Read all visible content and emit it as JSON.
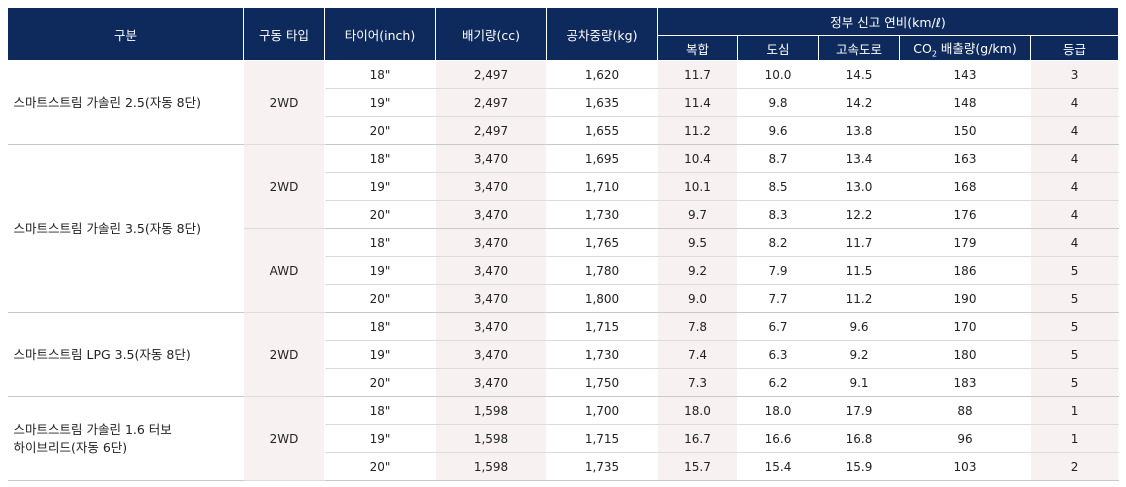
{
  "header": {
    "division": "구분",
    "drive_type": "구동 타입",
    "tire": "타이어(inch)",
    "displacement": "배기량(cc)",
    "curb_weight": "공차중량(kg)",
    "fuel_economy_group": "정부 신고 연비(km/ℓ)",
    "combined": "복합",
    "city": "도심",
    "highway": "고속도로",
    "co2_prefix": "CO",
    "co2_sub": "2",
    "co2_suffix": " 배출량(g/km)",
    "grade": "등급"
  },
  "groups": [
    {
      "model": "스마트스트림 가솔린 2.5(자동 8단)",
      "drives": [
        {
          "drive": "2WD",
          "rows": [
            {
              "tire": "18\"",
              "disp": "2,497",
              "weight": "1,620",
              "combined": "11.7",
              "city": "10.0",
              "highway": "14.5",
              "co2": "143",
              "grade": "3"
            },
            {
              "tire": "19\"",
              "disp": "2,497",
              "weight": "1,635",
              "combined": "11.4",
              "city": "9.8",
              "highway": "14.2",
              "co2": "148",
              "grade": "4"
            },
            {
              "tire": "20\"",
              "disp": "2,497",
              "weight": "1,655",
              "combined": "11.2",
              "city": "9.6",
              "highway": "13.8",
              "co2": "150",
              "grade": "4"
            }
          ]
        }
      ]
    },
    {
      "model": "스마트스트림 가솔린 3.5(자동 8단)",
      "drives": [
        {
          "drive": "2WD",
          "rows": [
            {
              "tire": "18\"",
              "disp": "3,470",
              "weight": "1,695",
              "combined": "10.4",
              "city": "8.7",
              "highway": "13.4",
              "co2": "163",
              "grade": "4"
            },
            {
              "tire": "19\"",
              "disp": "3,470",
              "weight": "1,710",
              "combined": "10.1",
              "city": "8.5",
              "highway": "13.0",
              "co2": "168",
              "grade": "4"
            },
            {
              "tire": "20\"",
              "disp": "3,470",
              "weight": "1,730",
              "combined": "9.7",
              "city": "8.3",
              "highway": "12.2",
              "co2": "176",
              "grade": "4"
            }
          ]
        },
        {
          "drive": "AWD",
          "rows": [
            {
              "tire": "18\"",
              "disp": "3,470",
              "weight": "1,765",
              "combined": "9.5",
              "city": "8.2",
              "highway": "11.7",
              "co2": "179",
              "grade": "4"
            },
            {
              "tire": "19\"",
              "disp": "3,470",
              "weight": "1,780",
              "combined": "9.2",
              "city": "7.9",
              "highway": "11.5",
              "co2": "186",
              "grade": "5"
            },
            {
              "tire": "20\"",
              "disp": "3,470",
              "weight": "1,800",
              "combined": "9.0",
              "city": "7.7",
              "highway": "11.2",
              "co2": "190",
              "grade": "5"
            }
          ]
        }
      ]
    },
    {
      "model": "스마트스트림 LPG 3.5(자동 8단)",
      "drives": [
        {
          "drive": "2WD",
          "rows": [
            {
              "tire": "18\"",
              "disp": "3,470",
              "weight": "1,715",
              "combined": "7.8",
              "city": "6.7",
              "highway": "9.6",
              "co2": "170",
              "grade": "5"
            },
            {
              "tire": "19\"",
              "disp": "3,470",
              "weight": "1,730",
              "combined": "7.4",
              "city": "6.3",
              "highway": "9.2",
              "co2": "180",
              "grade": "5"
            },
            {
              "tire": "20\"",
              "disp": "3,470",
              "weight": "1,750",
              "combined": "7.3",
              "city": "6.2",
              "highway": "9.1",
              "co2": "183",
              "grade": "5"
            }
          ]
        }
      ]
    },
    {
      "model_line1": "스마트스트림 가솔린 1.6 터보",
      "model_line2": "하이브리드(자동 6단)",
      "drives": [
        {
          "drive": "2WD",
          "rows": [
            {
              "tire": "18\"",
              "disp": "1,598",
              "weight": "1,700",
              "combined": "18.0",
              "city": "18.0",
              "highway": "17.9",
              "co2": "88",
              "grade": "1"
            },
            {
              "tire": "19\"",
              "disp": "1,598",
              "weight": "1,715",
              "combined": "16.7",
              "city": "16.6",
              "highway": "16.8",
              "co2": "96",
              "grade": "1"
            },
            {
              "tire": "20\"",
              "disp": "1,598",
              "weight": "1,735",
              "combined": "15.7",
              "city": "15.4",
              "highway": "15.9",
              "co2": "103",
              "grade": "2"
            }
          ]
        }
      ]
    }
  ]
}
